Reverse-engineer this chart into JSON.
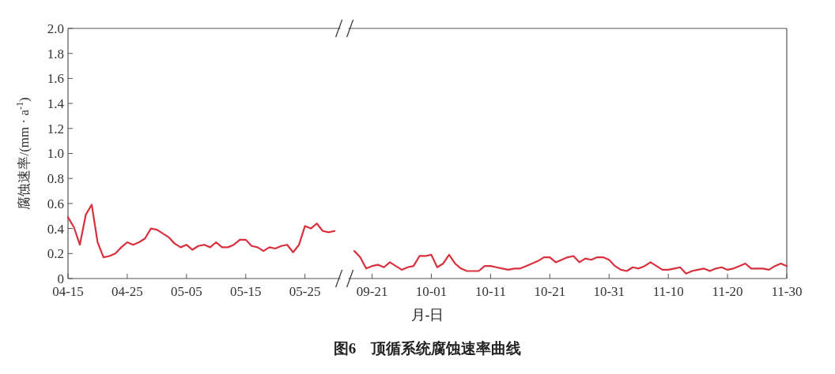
{
  "chart_data": [
    {
      "type": "line",
      "xlabel": "月-日",
      "ylabel": "腐蚀速率/(mm · a$^{-1}$)",
      "xlim": [
        "--04-15",
        "--05-31"
      ],
      "xticks": [
        {
          "value": "--04-15",
          "label": "04-15"
        },
        {
          "value": "--04-25",
          "label": "04-25"
        },
        {
          "value": "--05-05",
          "label": "05-05"
        },
        {
          "value": "--05-15",
          "label": "05-15"
        },
        {
          "value": "--05-25",
          "label": "05-25"
        }
      ],
      "ylim": [
        0,
        2
      ],
      "yticks": [
        0,
        0.2,
        0.4,
        0.6,
        0.8,
        {
          "value": 1,
          "label": "1.0"
        },
        1.2,
        1.4,
        1.6,
        1.8,
        {
          "value": 2,
          "label": "2.0"
        }
      ],
      "series": [
        {
          "color": "#d9303e",
          "x": [
            "--04-15",
            "--04-16",
            "--04-17",
            "--04-18",
            "--04-19",
            "--04-20",
            "--04-21",
            "--04-22",
            "--04-23",
            "--04-24",
            "--04-25",
            "--04-26",
            "--04-27",
            "--04-28",
            "--04-29",
            "--04-30",
            "--05-01",
            "--05-02",
            "--05-03",
            "--05-04",
            "--05-05",
            "--05-06",
            "--05-07",
            "--05-08",
            "--05-09",
            "--05-10",
            "--05-11",
            "--05-12",
            "--05-13",
            "--05-14",
            "--05-15",
            "--05-16",
            "--05-17",
            "--05-18",
            "--05-19",
            "--05-20",
            "--05-21",
            "--05-22",
            "--05-23",
            "--05-24",
            "--05-25",
            "--05-26",
            "--05-27",
            "--05-28",
            "--05-29",
            "--05-30"
          ],
          "values": [
            0.49,
            0.41,
            0.27,
            0.51,
            0.59,
            0.29,
            0.17,
            0.18,
            0.2,
            0.25,
            0.29,
            0.27,
            0.29,
            0.32,
            0.4,
            0.39,
            0.36,
            0.33,
            0.28,
            0.25,
            0.27,
            0.23,
            0.26,
            0.27,
            0.25,
            0.29,
            0.25,
            0.25,
            0.27,
            0.31,
            0.31,
            0.26,
            0.25,
            0.22,
            0.25,
            0.24,
            0.26,
            0.27,
            0.21,
            0.27,
            0.42,
            0.4,
            0.44,
            0.38,
            0.37,
            0.38
          ]
        }
      ]
    },
    {
      "type": "line",
      "title": "图6　顶循系统腐蚀速率曲线",
      "tick_labels": "x",
      "xlim": [
        "--09-17",
        "--11-30"
      ],
      "xticks": [
        {
          "value": "--09-21",
          "label": "09-21"
        },
        {
          "value": "--10-01",
          "label": "10-01"
        },
        {
          "value": "--10-11",
          "label": "10-11"
        },
        {
          "value": "--10-21",
          "label": "10-21"
        },
        {
          "value": "--10-31",
          "label": "10-31"
        },
        {
          "value": "--11-10",
          "label": "11-10"
        },
        {
          "value": "--11-20",
          "label": "11-20"
        },
        {
          "value": "--11-30",
          "label": "11-30"
        }
      ],
      "ylim": [
        0,
        2
      ],
      "series": [
        {
          "color": "#d9303e",
          "x": [
            "--09-18",
            "--09-19",
            "--09-20",
            "--09-21",
            "--09-22",
            "--09-23",
            "--09-24",
            "--09-25",
            "--09-26",
            "--09-27",
            "--09-28",
            "--09-29",
            "--09-30",
            "--10-01",
            "--10-02",
            "--10-03",
            "--10-04",
            "--10-05",
            "--10-06",
            "--10-07",
            "--10-08",
            "--10-09",
            "--10-10",
            "--10-11",
            "--10-12",
            "--10-13",
            "--10-14",
            "--10-15",
            "--10-16",
            "--10-17",
            "--10-18",
            "--10-19",
            "--10-20",
            "--10-21",
            "--10-22",
            "--10-23",
            "--10-24",
            "--10-25",
            "--10-26",
            "--10-27",
            "--10-28",
            "--10-29",
            "--10-30",
            "--10-31",
            "--11-01",
            "--11-02",
            "--11-03",
            "--11-04",
            "--11-05",
            "--11-06",
            "--11-07",
            "--11-08",
            "--11-09",
            "--11-10",
            "--11-11",
            "--11-12",
            "--11-13",
            "--11-14",
            "--11-15",
            "--11-16",
            "--11-17",
            "--11-18",
            "--11-19",
            "--11-20",
            "--11-21",
            "--11-22",
            "--11-23",
            "--11-24",
            "--11-25",
            "--11-26",
            "--11-27",
            "--11-28",
            "--11-29",
            "--11-30"
          ],
          "values": [
            0.22,
            0.17,
            0.08,
            0.1,
            0.11,
            0.09,
            0.13,
            0.1,
            0.07,
            0.09,
            0.1,
            0.18,
            0.18,
            0.19,
            0.09,
            0.12,
            0.19,
            0.12,
            0.08,
            0.06,
            0.06,
            0.06,
            0.1,
            0.1,
            0.09,
            0.08,
            0.07,
            0.08,
            0.08,
            0.1,
            0.12,
            0.14,
            0.17,
            0.17,
            0.13,
            0.15,
            0.17,
            0.18,
            0.13,
            0.16,
            0.15,
            0.17,
            0.17,
            0.15,
            0.1,
            0.07,
            0.06,
            0.09,
            0.08,
            0.1,
            0.13,
            0.1,
            0.07,
            0.07,
            0.08,
            0.09,
            0.04,
            0.06,
            0.07,
            0.08,
            0.06,
            0.08,
            0.09,
            0.07,
            0.08,
            0.1,
            0.12,
            0.08,
            0.08,
            0.08,
            0.07,
            0.1,
            0.12,
            0.1
          ]
        }
      ]
    }
  ]
}
